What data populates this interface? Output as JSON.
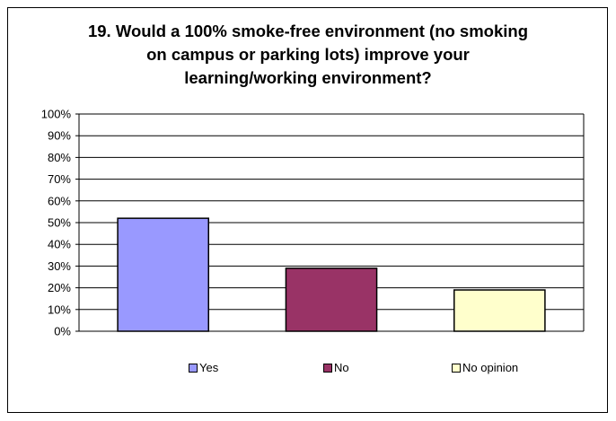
{
  "chart_data": {
    "type": "bar",
    "title_lines": [
      "19. Would a 100% smoke-free environment (no smoking",
      "on campus or parking lots) improve your",
      "learning/working environment?"
    ],
    "categories": [
      "Yes",
      "No",
      "No opinion"
    ],
    "values": [
      52,
      29,
      19
    ],
    "colors": [
      "#9999ff",
      "#993366",
      "#ffffcc"
    ],
    "ylim": [
      0,
      100
    ],
    "yticks": [
      "0%",
      "10%",
      "20%",
      "30%",
      "40%",
      "50%",
      "60%",
      "70%",
      "80%",
      "90%",
      "100%"
    ],
    "grid": true,
    "legend_position": "bottom"
  }
}
